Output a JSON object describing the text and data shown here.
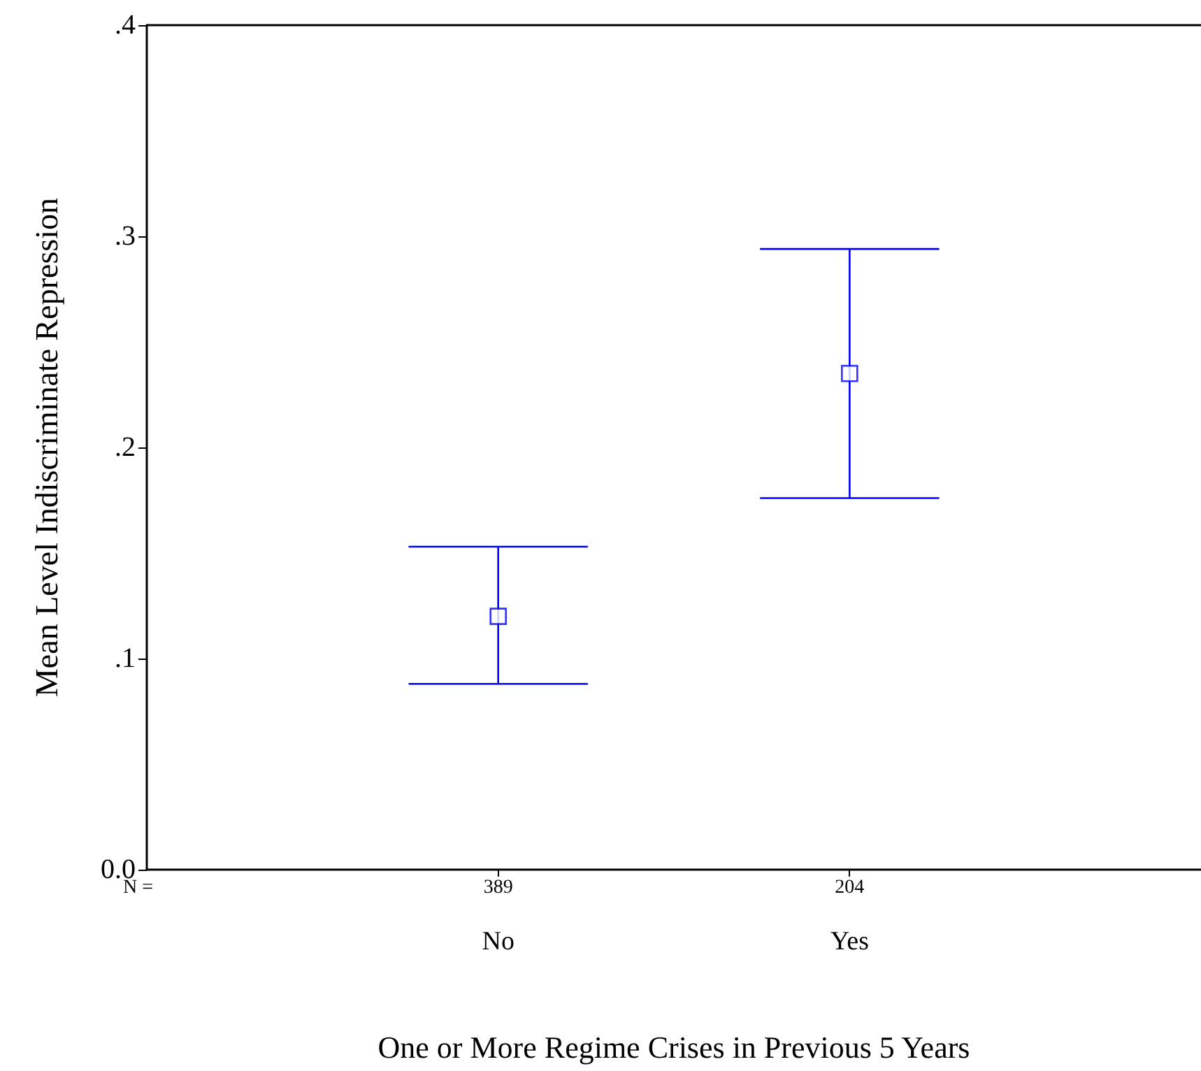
{
  "chart_data": {
    "type": "scatter",
    "categories": [
      "No",
      "Yes"
    ],
    "xlabel": "One or More Regime Crises in Previous 5 Years",
    "ylabel": "Mean Level Indiscriminate Repression",
    "color": "#0000ff",
    "values": [
      0.12,
      0.235
    ],
    "errors": [
      [
        0.088,
        0.153
      ],
      [
        0.176,
        0.294
      ]
    ],
    "marker": "square",
    "ylim": [
      0,
      0.4
    ],
    "yticks": [
      {
        "value": 0,
        "label": "0.0"
      },
      {
        "value": 0.1,
        "label": ".1"
      },
      {
        "value": 0.2,
        "label": ".2"
      },
      {
        "value": 0.3,
        "label": ".3"
      },
      {
        "value": 0.4,
        "label": ".4"
      }
    ],
    "grid": false,
    "annotations": [
      "N =",
      "389",
      "204"
    ]
  }
}
